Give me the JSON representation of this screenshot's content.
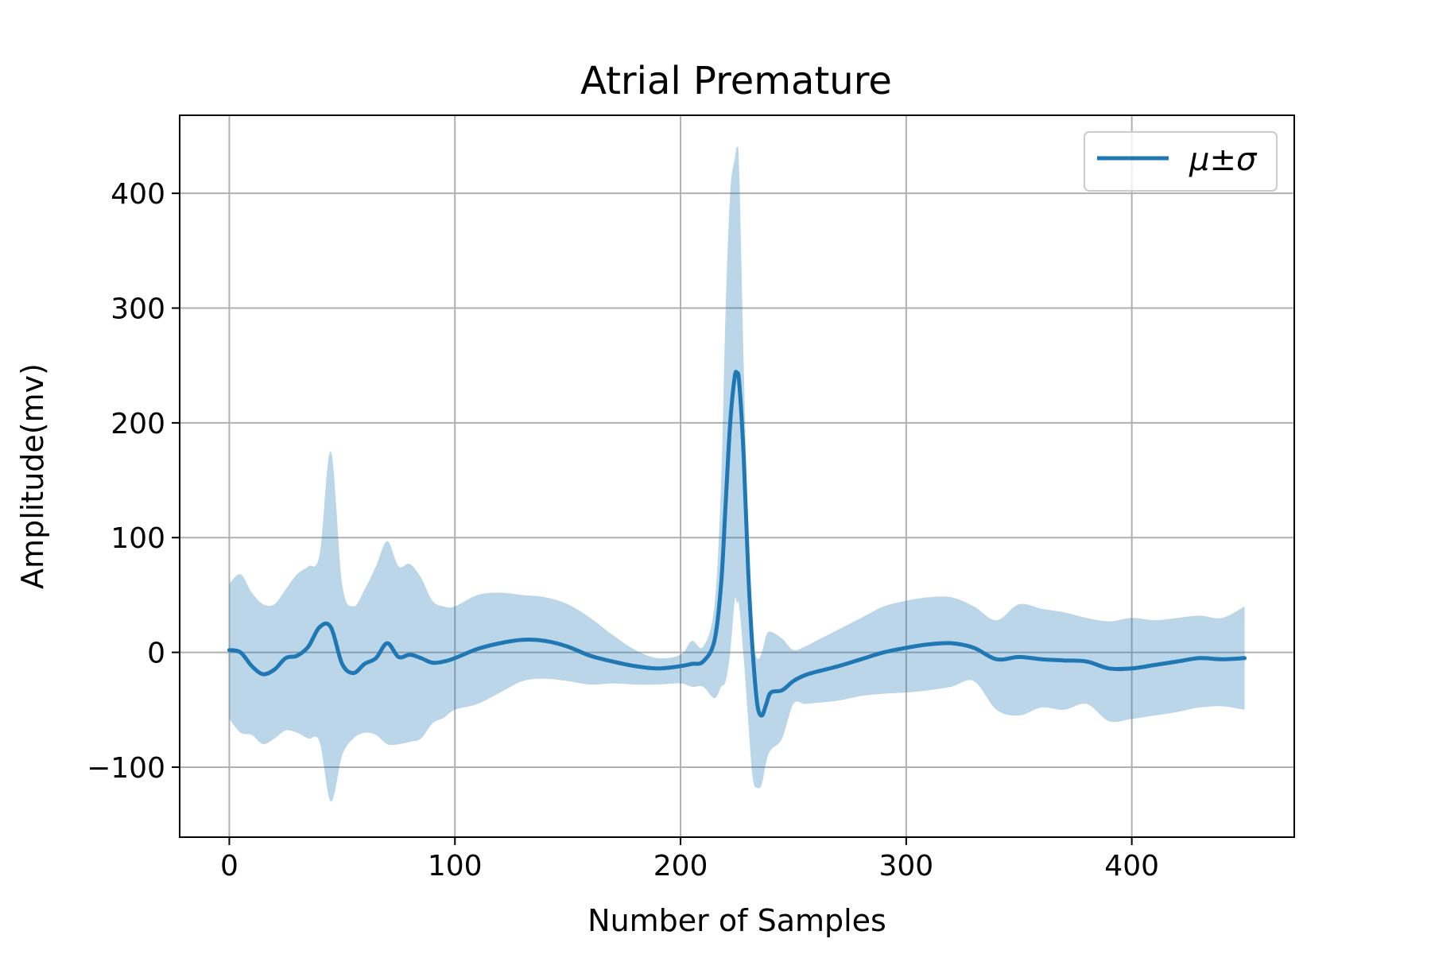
{
  "chart_data": {
    "type": "line",
    "title": "Atrial Premature",
    "xlabel": "Number of Samples",
    "ylabel": "Amplitude(mv)",
    "xlim": [
      -22,
      472
    ],
    "ylim": [
      -161,
      468
    ],
    "x_ticks": [
      0,
      100,
      200,
      300,
      400
    ],
    "y_ticks": [
      -100,
      0,
      100,
      200,
      300,
      400
    ],
    "x_tick_labels": [
      "0",
      "100",
      "200",
      "300",
      "400"
    ],
    "y_tick_labels": [
      "−100",
      "0",
      "100",
      "200",
      "300",
      "400"
    ],
    "grid": true,
    "legend": {
      "location": "top-right",
      "entries": [
        "μ±σ"
      ]
    },
    "colors": {
      "line": "#1f77b4",
      "band": "#1f77b4",
      "band_opacity": 0.3,
      "grid": "#b0b0b0"
    },
    "series": [
      {
        "name": "μ±σ",
        "x": [
          0,
          5,
          10,
          15,
          20,
          25,
          30,
          35,
          40,
          45,
          50,
          55,
          60,
          65,
          70,
          75,
          80,
          85,
          90,
          95,
          100,
          110,
          120,
          130,
          140,
          150,
          160,
          170,
          180,
          190,
          200,
          205,
          210,
          215,
          218,
          220,
          222,
          224,
          225,
          226,
          228,
          230,
          232,
          234,
          236,
          238,
          240,
          245,
          250,
          255,
          260,
          270,
          280,
          290,
          300,
          310,
          320,
          330,
          340,
          350,
          360,
          370,
          380,
          390,
          400,
          410,
          420,
          430,
          440,
          450
        ],
        "mean": [
          2,
          0,
          -12,
          -19,
          -15,
          -5,
          -3,
          5,
          22,
          22,
          -10,
          -18,
          -10,
          -5,
          8,
          -4,
          -2,
          -5,
          -9,
          -8,
          -5,
          3,
          8,
          11,
          10,
          5,
          -3,
          -8,
          -12,
          -14,
          -12,
          -10,
          -8,
          10,
          60,
          130,
          200,
          240,
          243,
          235,
          170,
          70,
          0,
          -45,
          -55,
          -45,
          -35,
          -33,
          -25,
          -20,
          -17,
          -12,
          -6,
          0,
          4,
          7,
          8,
          4,
          -6,
          -4,
          -6,
          -7,
          -8,
          -14,
          -14,
          -11,
          -8,
          -5,
          -6,
          -5
        ],
        "upper": [
          60,
          68,
          52,
          42,
          42,
          55,
          68,
          75,
          85,
          175,
          60,
          40,
          55,
          75,
          97,
          75,
          77,
          65,
          45,
          40,
          40,
          50,
          52,
          50,
          48,
          42,
          30,
          15,
          2,
          -5,
          -2,
          10,
          5,
          40,
          150,
          300,
          400,
          430,
          440,
          420,
          250,
          100,
          15,
          -5,
          0,
          15,
          18,
          12,
          2,
          5,
          10,
          20,
          30,
          40,
          45,
          48,
          48,
          40,
          28,
          42,
          38,
          35,
          30,
          27,
          30,
          28,
          30,
          32,
          30,
          40
        ],
        "lower": [
          -58,
          -70,
          -72,
          -80,
          -75,
          -68,
          -70,
          -75,
          -78,
          -130,
          -90,
          -75,
          -70,
          -72,
          -80,
          -80,
          -78,
          -75,
          -62,
          -57,
          -50,
          -45,
          -35,
          -25,
          -23,
          -25,
          -28,
          -27,
          -28,
          -28,
          -27,
          -30,
          -30,
          -40,
          -30,
          -25,
          0,
          45,
          43,
          40,
          -5,
          -60,
          -110,
          -118,
          -115,
          -95,
          -85,
          -75,
          -45,
          -45,
          -44,
          -42,
          -38,
          -36,
          -35,
          -33,
          -30,
          -25,
          -50,
          -55,
          -48,
          -50,
          -45,
          -60,
          -58,
          -55,
          -52,
          -48,
          -47,
          -50
        ]
      }
    ]
  }
}
